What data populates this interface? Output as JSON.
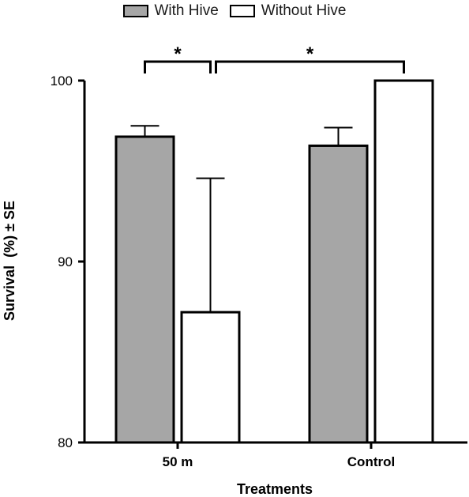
{
  "chart_data": {
    "type": "bar",
    "categories": [
      "50 m",
      "Control"
    ],
    "series": [
      {
        "name": "With Hive",
        "values": [
          96.9,
          96.4
        ],
        "se": [
          0.6,
          1.0
        ],
        "color": "#a6a6a6"
      },
      {
        "name": "Without Hive",
        "values": [
          87.2,
          100
        ],
        "se": [
          7.4,
          0
        ],
        "color": "#ffffff"
      }
    ],
    "xlabel": "Treatments",
    "ylabel": "Survival  (%) ± SE",
    "ylim": [
      80,
      100
    ],
    "yticks": [
      80,
      90,
      100
    ],
    "grid": false,
    "legend_position": "top",
    "significance": [
      {
        "label": "*",
        "between": [
          "50 m / With Hive",
          "50 m / Without Hive"
        ]
      },
      {
        "label": "*",
        "between": [
          "50 m / Without Hive",
          "Control / Without Hive"
        ]
      }
    ]
  }
}
